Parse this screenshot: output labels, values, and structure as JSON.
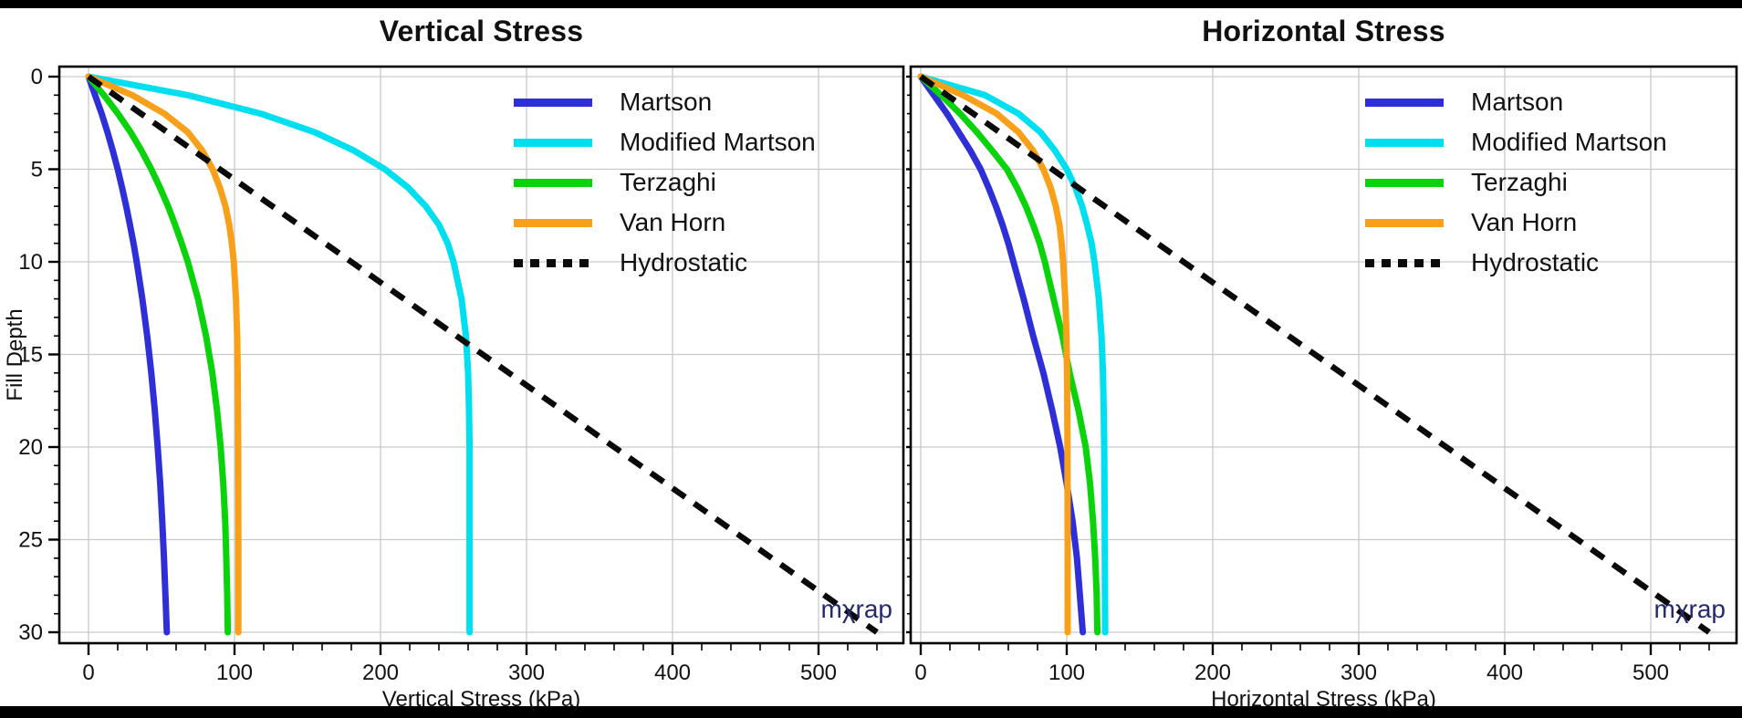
{
  "page": {
    "background": "#ffffff",
    "top_bar_color": "#000000",
    "bottom_bar_color": "#000000",
    "text_color": "#111111",
    "grid_color": "#c9c9c9",
    "frame_color": "#000000",
    "watermark_color": "#252a6e"
  },
  "chart_data": [
    {
      "type": "line",
      "title": "Vertical Stress",
      "xlabel": "Vertical Stress (kPa)",
      "ylabel": "Fill Depth",
      "watermark": "mχrap",
      "x_ticks": [
        0,
        100,
        200,
        300,
        400,
        500
      ],
      "y_ticks": [
        0,
        5,
        10,
        15,
        20,
        25,
        30
      ],
      "x_minor_step": 20,
      "y_minor_step": 1,
      "xlim": [
        0,
        558
      ],
      "ylim": [
        0,
        30
      ],
      "y_axis_inverted": true,
      "grid": true,
      "legend_position": "upper right",
      "point_format": "[stress_kPa, depth_m]",
      "series": [
        {
          "name": "Martson",
          "color": "#2f2fd8",
          "style": "solid",
          "points": [
            [
              0,
              0
            ],
            [
              4.5,
              1
            ],
            [
              9,
              2
            ],
            [
              13,
              3
            ],
            [
              16.6,
              4
            ],
            [
              20,
              5
            ],
            [
              23,
              6
            ],
            [
              25.8,
              7
            ],
            [
              28.4,
              8
            ],
            [
              30.8,
              9
            ],
            [
              33,
              10
            ],
            [
              36.9,
              12
            ],
            [
              40.2,
              14
            ],
            [
              43,
              16
            ],
            [
              45.4,
              18
            ],
            [
              47.4,
              20
            ],
            [
              49.1,
              22
            ],
            [
              50.5,
              24
            ],
            [
              51.7,
              26
            ],
            [
              52.7,
              28
            ],
            [
              53.6,
              30
            ]
          ]
        },
        {
          "name": "Modified Martson",
          "color": "#00dff0",
          "style": "solid",
          "points": [
            [
              0,
              0
            ],
            [
              68,
              1
            ],
            [
              118,
              2
            ],
            [
              155,
              3
            ],
            [
              182,
              4
            ],
            [
              203,
              5
            ],
            [
              219,
              6
            ],
            [
              231,
              7
            ],
            [
              240,
              8
            ],
            [
              246,
              9
            ],
            [
              250,
              10
            ],
            [
              255.5,
              12
            ],
            [
              258.5,
              14
            ],
            [
              260,
              16
            ],
            [
              260.6,
              18
            ],
            [
              261,
              20
            ],
            [
              261,
              25
            ],
            [
              261,
              30
            ]
          ]
        },
        {
          "name": "Terzaghi",
          "color": "#0bd30b",
          "style": "solid",
          "points": [
            [
              0,
              0
            ],
            [
              10.5,
              1
            ],
            [
              20.2,
              2
            ],
            [
              28.8,
              3
            ],
            [
              36.3,
              4
            ],
            [
              43,
              5
            ],
            [
              49,
              6
            ],
            [
              54.5,
              7
            ],
            [
              59.3,
              8
            ],
            [
              63.8,
              9
            ],
            [
              68,
              10
            ],
            [
              75,
              12
            ],
            [
              80.5,
              14
            ],
            [
              84.8,
              16
            ],
            [
              88,
              18
            ],
            [
              90.5,
              20
            ],
            [
              92.3,
              22
            ],
            [
              93.6,
              24
            ],
            [
              94.4,
              26
            ],
            [
              95,
              28
            ],
            [
              95.4,
              30
            ]
          ]
        },
        {
          "name": "Van Horn",
          "color": "#f9a01b",
          "style": "solid",
          "points": [
            [
              0,
              0
            ],
            [
              30,
              1
            ],
            [
              52,
              2
            ],
            [
              68,
              3
            ],
            [
              78,
              4
            ],
            [
              85,
              5
            ],
            [
              90,
              6
            ],
            [
              93.8,
              7
            ],
            [
              96.4,
              8
            ],
            [
              98.2,
              9
            ],
            [
              99.5,
              10
            ],
            [
              101,
              12
            ],
            [
              101.8,
              14
            ],
            [
              102.2,
              16
            ],
            [
              102.4,
              18
            ],
            [
              102.5,
              20
            ],
            [
              102.6,
              25
            ],
            [
              102.6,
              30
            ]
          ]
        },
        {
          "name": "Hydrostatic",
          "color": "#0a0a0a",
          "style": "dashed",
          "points": [
            [
              0,
              0
            ],
            [
              540,
              30
            ]
          ]
        }
      ]
    },
    {
      "type": "line",
      "title": "Horizontal Stress",
      "xlabel": "Horizontal Stress (kPa)",
      "ylabel": "",
      "watermark": "mχrap",
      "x_ticks": [
        0,
        100,
        200,
        300,
        400,
        500
      ],
      "y_ticks": [
        0,
        5,
        10,
        15,
        20,
        25,
        30
      ],
      "x_minor_step": 20,
      "y_minor_step": 1,
      "xlim": [
        0,
        559
      ],
      "ylim": [
        0,
        30
      ],
      "y_axis_inverted": true,
      "grid": true,
      "legend_position": "upper right",
      "point_format": "[stress_kPa, depth_m]",
      "series": [
        {
          "name": "Martson",
          "color": "#2f2fd8",
          "style": "solid",
          "points": [
            [
              0,
              0
            ],
            [
              9,
              1
            ],
            [
              18,
              2
            ],
            [
              26,
              3
            ],
            [
              34,
              4
            ],
            [
              41,
              5
            ],
            [
              46.5,
              6
            ],
            [
              51.5,
              7
            ],
            [
              56,
              8
            ],
            [
              60,
              9
            ],
            [
              63.5,
              10
            ],
            [
              70.5,
              12
            ],
            [
              77,
              14
            ],
            [
              84,
              16
            ],
            [
              90,
              18
            ],
            [
              95.5,
              20
            ],
            [
              100,
              22
            ],
            [
              104,
              24
            ],
            [
              107,
              26
            ],
            [
              109,
              28
            ],
            [
              111,
              30
            ]
          ]
        },
        {
          "name": "Modified Martson",
          "color": "#00dff0",
          "style": "solid",
          "points": [
            [
              0,
              0
            ],
            [
              44,
              1
            ],
            [
              67,
              2
            ],
            [
              82,
              3
            ],
            [
              92,
              4
            ],
            [
              100,
              5
            ],
            [
              106,
              6
            ],
            [
              110.5,
              7
            ],
            [
              114,
              8
            ],
            [
              117,
              9
            ],
            [
              119,
              10
            ],
            [
              122,
              12
            ],
            [
              123.8,
              14
            ],
            [
              124.8,
              16
            ],
            [
              125.3,
              18
            ],
            [
              125.7,
              20
            ],
            [
              126,
              24
            ],
            [
              126.3,
              30
            ]
          ]
        },
        {
          "name": "Terzaghi",
          "color": "#0bd30b",
          "style": "solid",
          "points": [
            [
              0,
              0
            ],
            [
              14,
              1
            ],
            [
              27,
              2
            ],
            [
              38.5,
              3
            ],
            [
              49,
              4
            ],
            [
              59,
              5
            ],
            [
              66,
              6
            ],
            [
              72,
              7
            ],
            [
              77,
              8
            ],
            [
              81.5,
              9
            ],
            [
              85,
              10
            ],
            [
              91,
              12
            ],
            [
              97,
              14
            ],
            [
              102,
              16
            ],
            [
              108,
              18
            ],
            [
              113,
              20
            ],
            [
              116,
              22
            ],
            [
              118,
              24
            ],
            [
              119.5,
              26
            ],
            [
              120.5,
              28
            ],
            [
              121,
              30
            ]
          ]
        },
        {
          "name": "Van Horn",
          "color": "#f9a01b",
          "style": "solid",
          "points": [
            [
              0,
              0
            ],
            [
              29,
              1
            ],
            [
              52,
              2
            ],
            [
              67,
              3
            ],
            [
              77,
              4
            ],
            [
              84,
              5
            ],
            [
              89,
              6
            ],
            [
              92.5,
              7
            ],
            [
              95,
              8
            ],
            [
              96.5,
              9
            ],
            [
              97.5,
              10
            ],
            [
              99,
              12
            ],
            [
              99.8,
              14
            ],
            [
              100.2,
              16
            ],
            [
              100.4,
              18
            ],
            [
              100.5,
              20
            ],
            [
              100.6,
              25
            ],
            [
              100.6,
              30
            ]
          ]
        },
        {
          "name": "Hydrostatic",
          "color": "#0a0a0a",
          "style": "dashed",
          "points": [
            [
              0,
              0
            ],
            [
              540,
              30
            ]
          ]
        }
      ]
    }
  ]
}
